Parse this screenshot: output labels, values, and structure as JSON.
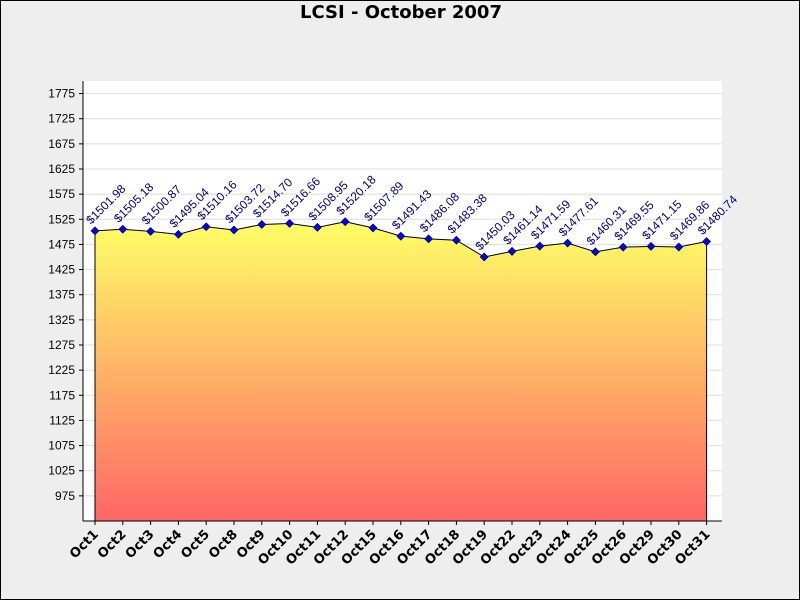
{
  "chart_data": {
    "type": "area",
    "title": "LCSI - October 2007",
    "xlabel": "",
    "ylabel": "",
    "categories": [
      "Oct1",
      "Oct2",
      "Oct3",
      "Oct4",
      "Oct5",
      "Oct8",
      "Oct9",
      "Oct10",
      "Oct11",
      "Oct12",
      "Oct15",
      "Oct16",
      "Oct17",
      "Oct18",
      "Oct19",
      "Oct22",
      "Oct23",
      "Oct24",
      "Oct25",
      "Oct26",
      "Oct29",
      "Oct30",
      "Oct31"
    ],
    "values": [
      1501.98,
      1505.18,
      1500.87,
      1495.04,
      1510.16,
      1503.72,
      1514.7,
      1516.66,
      1508.95,
      1520.18,
      1507.89,
      1491.43,
      1486.08,
      1483.38,
      1450.03,
      1461.14,
      1471.59,
      1477.61,
      1460.31,
      1469.55,
      1471.15,
      1469.86,
      1480.74
    ],
    "data_labels": [
      "$1501.98",
      "$1505.18",
      "$1500.87",
      "$1495.04",
      "$1510.16",
      "$1503.72",
      "$1514.70",
      "$1516.66",
      "$1508.95",
      "$1520.18",
      "$1507.89",
      "$1491.43",
      "$1486.08",
      "$1483.38",
      "$1450.03",
      "$1461.14",
      "$1471.59",
      "$1477.61",
      "$1460.31",
      "$1469.55",
      "$1471.15",
      "$1469.86",
      "$1480.74"
    ],
    "ylim": [
      925,
      1800
    ],
    "yticks": [
      975,
      1025,
      1075,
      1125,
      1175,
      1225,
      1275,
      1325,
      1375,
      1425,
      1475,
      1525,
      1575,
      1625,
      1675,
      1725,
      1775
    ],
    "grid": true,
    "legend": "none",
    "colors": {
      "fill_top": "#ffff66",
      "fill_bottom": "#ff6666",
      "line": "#000000",
      "marker": "#0000ee",
      "label": "#000080",
      "plot_background": "#ffffff",
      "outer_background": "#eeeeee",
      "grid": "#dddddd"
    }
  }
}
